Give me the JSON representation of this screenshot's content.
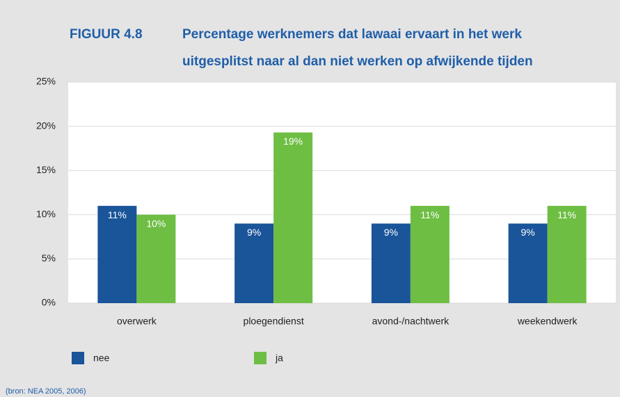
{
  "chart_data": {
    "type": "bar",
    "figure_label": "FIGUUR 4.8",
    "title_lines": [
      "Percentage werknemers dat lawaai ervaart in het werk",
      "uitgesplitst naar al dan niet werken op afwijkende tijden"
    ],
    "categories": [
      "overwerk",
      "ploegendienst",
      "avond-/nachtwerk",
      "weekendwerk"
    ],
    "series": [
      {
        "name": "nee",
        "color": "#1a5499",
        "values": [
          11,
          9,
          9,
          9
        ],
        "value_labels": [
          "11%",
          "9%",
          "9%",
          "9%"
        ]
      },
      {
        "name": "ja",
        "color": "#6ebe44",
        "values": [
          10,
          19.3,
          11,
          11
        ],
        "value_labels": [
          "10%",
          "19%",
          "11%",
          "11%"
        ]
      }
    ],
    "ylim": [
      0,
      25
    ],
    "yticks": [
      {
        "value": 0,
        "label": "0%"
      },
      {
        "value": 5,
        "label": "5%"
      },
      {
        "value": 10,
        "label": "10%"
      },
      {
        "value": 15,
        "label": "15%"
      },
      {
        "value": 20,
        "label": "20%"
      },
      {
        "value": 25,
        "label": "25%"
      }
    ],
    "grid": true,
    "source": "(bron: NEA 2005, 2006)"
  }
}
